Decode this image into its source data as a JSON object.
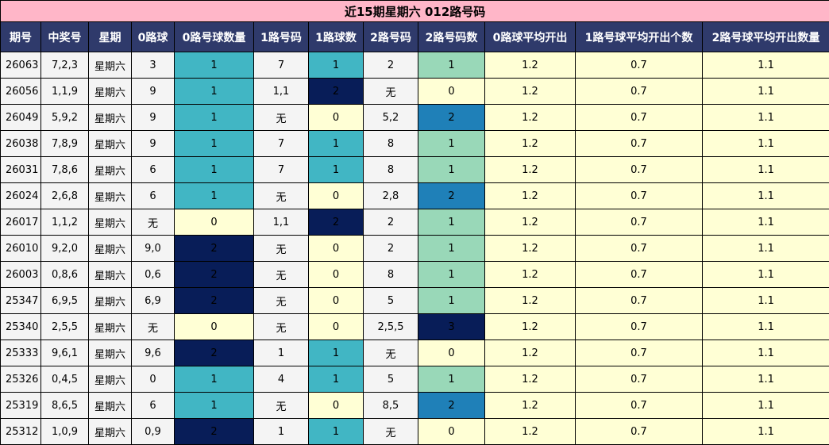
{
  "title": "近15期星期六 012路号码",
  "headers": [
    "期号",
    "中奖号",
    "星期",
    "0路球",
    "0路号球数量",
    "1路号码",
    "1路球数",
    "2路号码",
    "2路号码数",
    "0路球平均开出",
    "1路号球平均开出个数",
    "2路号球平均开出数量"
  ],
  "colors": {
    "title_bg": "#ffb6c8",
    "header_bg": "#2f3a6b",
    "count_0": "#ffffd5",
    "count_1": "#41b6c4",
    "count_1_alt": "#99d8b8",
    "count_2": "#081d58",
    "count_2_alt": "#1f80b8",
    "count_3": "#081d58"
  },
  "rows": [
    {
      "period": "26063",
      "number": "7,2,3",
      "weekday": "星期六",
      "r0": "3",
      "r0_count": "1",
      "r1": "7",
      "r1_count": "1",
      "r2": "2",
      "r2_count": "1",
      "avg0": "1.2",
      "avg1": "0.7",
      "avg2": "1.1"
    },
    {
      "period": "26056",
      "number": "1,1,9",
      "weekday": "星期六",
      "r0": "9",
      "r0_count": "1",
      "r1": "1,1",
      "r1_count": "2",
      "r2": "无",
      "r2_count": "0",
      "avg0": "1.2",
      "avg1": "0.7",
      "avg2": "1.1"
    },
    {
      "period": "26049",
      "number": "5,9,2",
      "weekday": "星期六",
      "r0": "9",
      "r0_count": "1",
      "r1": "无",
      "r1_count": "0",
      "r2": "5,2",
      "r2_count": "2",
      "avg0": "1.2",
      "avg1": "0.7",
      "avg2": "1.1"
    },
    {
      "period": "26038",
      "number": "7,8,9",
      "weekday": "星期六",
      "r0": "9",
      "r0_count": "1",
      "r1": "7",
      "r1_count": "1",
      "r2": "8",
      "r2_count": "1",
      "avg0": "1.2",
      "avg1": "0.7",
      "avg2": "1.1"
    },
    {
      "period": "26031",
      "number": "7,8,6",
      "weekday": "星期六",
      "r0": "6",
      "r0_count": "1",
      "r1": "7",
      "r1_count": "1",
      "r2": "8",
      "r2_count": "1",
      "avg0": "1.2",
      "avg1": "0.7",
      "avg2": "1.1"
    },
    {
      "period": "26024",
      "number": "2,6,8",
      "weekday": "星期六",
      "r0": "6",
      "r0_count": "1",
      "r1": "无",
      "r1_count": "0",
      "r2": "2,8",
      "r2_count": "2",
      "avg0": "1.2",
      "avg1": "0.7",
      "avg2": "1.1"
    },
    {
      "period": "26017",
      "number": "1,1,2",
      "weekday": "星期六",
      "r0": "无",
      "r0_count": "0",
      "r1": "1,1",
      "r1_count": "2",
      "r2": "2",
      "r2_count": "1",
      "avg0": "1.2",
      "avg1": "0.7",
      "avg2": "1.1"
    },
    {
      "period": "26010",
      "number": "9,2,0",
      "weekday": "星期六",
      "r0": "9,0",
      "r0_count": "2",
      "r1": "无",
      "r1_count": "0",
      "r2": "2",
      "r2_count": "1",
      "avg0": "1.2",
      "avg1": "0.7",
      "avg2": "1.1"
    },
    {
      "period": "26003",
      "number": "0,8,6",
      "weekday": "星期六",
      "r0": "0,6",
      "r0_count": "2",
      "r1": "无",
      "r1_count": "0",
      "r2": "8",
      "r2_count": "1",
      "avg0": "1.2",
      "avg1": "0.7",
      "avg2": "1.1"
    },
    {
      "period": "25347",
      "number": "6,9,5",
      "weekday": "星期六",
      "r0": "6,9",
      "r0_count": "2",
      "r1": "无",
      "r1_count": "0",
      "r2": "5",
      "r2_count": "1",
      "avg0": "1.2",
      "avg1": "0.7",
      "avg2": "1.1"
    },
    {
      "period": "25340",
      "number": "2,5,5",
      "weekday": "星期六",
      "r0": "无",
      "r0_count": "0",
      "r1": "无",
      "r1_count": "0",
      "r2": "2,5,5",
      "r2_count": "3",
      "avg0": "1.2",
      "avg1": "0.7",
      "avg2": "1.1"
    },
    {
      "period": "25333",
      "number": "9,6,1",
      "weekday": "星期六",
      "r0": "9,6",
      "r0_count": "2",
      "r1": "1",
      "r1_count": "1",
      "r2": "无",
      "r2_count": "0",
      "avg0": "1.2",
      "avg1": "0.7",
      "avg2": "1.1"
    },
    {
      "period": "25326",
      "number": "0,4,5",
      "weekday": "星期六",
      "r0": "0",
      "r0_count": "1",
      "r1": "4",
      "r1_count": "1",
      "r2": "5",
      "r2_count": "1",
      "avg0": "1.2",
      "avg1": "0.7",
      "avg2": "1.1"
    },
    {
      "period": "25319",
      "number": "8,6,5",
      "weekday": "星期六",
      "r0": "6",
      "r0_count": "1",
      "r1": "无",
      "r1_count": "0",
      "r2": "8,5",
      "r2_count": "2",
      "avg0": "1.2",
      "avg1": "0.7",
      "avg2": "1.1"
    },
    {
      "period": "25312",
      "number": "1,0,9",
      "weekday": "星期六",
      "r0": "0,9",
      "r0_count": "2",
      "r1": "1",
      "r1_count": "1",
      "r2": "无",
      "r2_count": "0",
      "avg0": "1.2",
      "avg1": "0.7",
      "avg2": "1.1"
    }
  ]
}
